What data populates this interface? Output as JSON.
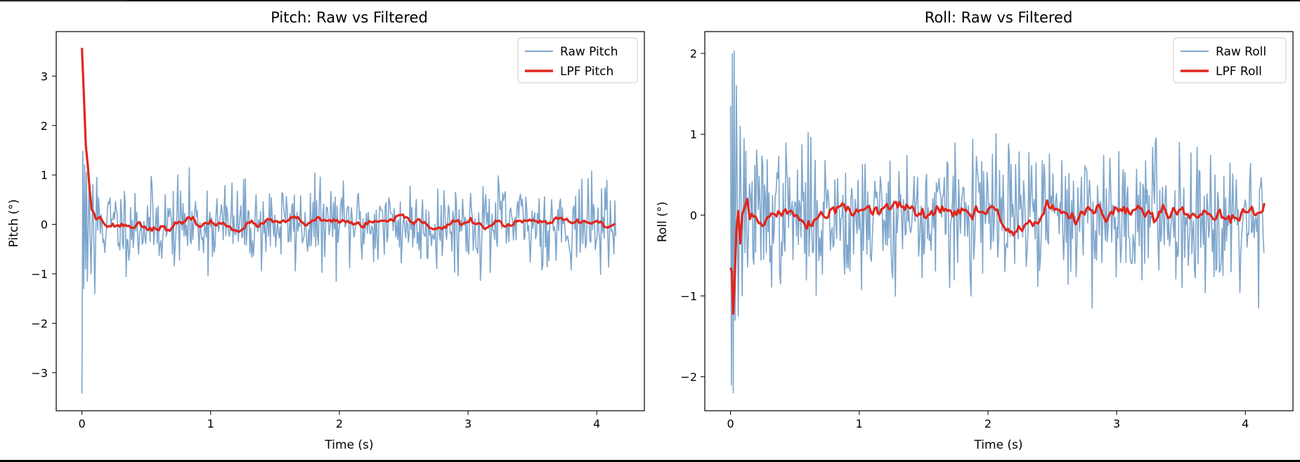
{
  "colors": {
    "raw": "#7ea6cc",
    "filtered": "#e1261c"
  },
  "chart_data": [
    {
      "type": "line",
      "title": "Pitch: Raw vs Filtered",
      "xlabel": "Time (s)",
      "ylabel": "Pitch (°)",
      "xlim": [
        -0.2,
        4.37
      ],
      "ylim": [
        -3.77,
        3.9
      ],
      "xticks": [
        0,
        1,
        2,
        3,
        4
      ],
      "yticks": [
        -3,
        -2,
        -1,
        0,
        1,
        2,
        3
      ],
      "xtick_labels": [
        "0",
        "1",
        "2",
        "3",
        "4"
      ],
      "ytick_labels": [
        "−3",
        "−2",
        "−1",
        "0",
        "1",
        "2",
        "3"
      ],
      "legend_position": "top-right",
      "series": [
        {
          "name": "Raw Pitch",
          "style": "raw",
          "x_range": [
            0,
            4.15
          ],
          "n": 600,
          "seed": 11,
          "noise": 0.42,
          "start_points": [
            [
              0,
              -3.42
            ],
            [
              0.007,
              1.48
            ],
            [
              0.014,
              -1.3
            ],
            [
              0.021,
              1.2
            ],
            [
              0.028,
              -0.9
            ],
            [
              0.035,
              1.05
            ],
            [
              0.042,
              -1.15
            ],
            [
              0.055,
              0.85
            ],
            [
              0.07,
              -1.0
            ],
            [
              0.085,
              0.8
            ],
            [
              0.1,
              -1.4
            ],
            [
              0.115,
              0.95
            ]
          ]
        },
        {
          "name": "LPF Pitch",
          "style": "filtered",
          "x_range": [
            0,
            4.15
          ],
          "n": 300,
          "seed": 23,
          "noise": 0.06,
          "start_points": [
            [
              0,
              3.57
            ],
            [
              0.015,
              2.6
            ],
            [
              0.03,
              1.6
            ],
            [
              0.045,
              1.2
            ],
            [
              0.06,
              0.7
            ],
            [
              0.075,
              0.3
            ],
            [
              0.09,
              0.25
            ],
            [
              0.11,
              0.1
            ],
            [
              0.14,
              0.15
            ],
            [
              0.17,
              0.02
            ]
          ]
        }
      ]
    },
    {
      "type": "line",
      "title": "Roll: Raw vs Filtered",
      "xlabel": "Time (s)",
      "ylabel": "Roll (°)",
      "xlim": [
        -0.2,
        4.37
      ],
      "ylim": [
        -2.42,
        2.27
      ],
      "xticks": [
        0,
        1,
        2,
        3,
        4
      ],
      "yticks": [
        -2,
        -1,
        0,
        1,
        2
      ],
      "xtick_labels": [
        "0",
        "1",
        "2",
        "3",
        "4"
      ],
      "ytick_labels": [
        "−2",
        "−1",
        "0",
        "1",
        "2"
      ],
      "legend_position": "top-right",
      "series": [
        {
          "name": "Raw Roll",
          "style": "raw",
          "x_range": [
            0,
            4.15
          ],
          "n": 600,
          "seed": 37,
          "noise": 0.42,
          "start_points": [
            [
              0,
              1.35
            ],
            [
              0.007,
              -2.1
            ],
            [
              0.014,
              2.0
            ],
            [
              0.021,
              -2.2
            ],
            [
              0.028,
              2.03
            ],
            [
              0.035,
              -1.3
            ],
            [
              0.045,
              1.6
            ],
            [
              0.06,
              -1.25
            ],
            [
              0.075,
              1.1
            ],
            [
              0.09,
              -1.0
            ],
            [
              0.105,
              0.95
            ]
          ]
        },
        {
          "name": "LPF Roll",
          "style": "filtered",
          "x_range": [
            0,
            4.15
          ],
          "n": 300,
          "seed": 51,
          "noise": 0.08,
          "start_points": [
            [
              0,
              -0.65
            ],
            [
              0.01,
              -0.7
            ],
            [
              0.02,
              -1.22
            ],
            [
              0.03,
              -0.9
            ],
            [
              0.045,
              -0.2
            ],
            [
              0.06,
              0.05
            ],
            [
              0.075,
              -0.35
            ],
            [
              0.09,
              0.0
            ],
            [
              0.11,
              0.1
            ],
            [
              0.13,
              0.2
            ],
            [
              0.15,
              -0.05
            ]
          ]
        }
      ]
    }
  ]
}
